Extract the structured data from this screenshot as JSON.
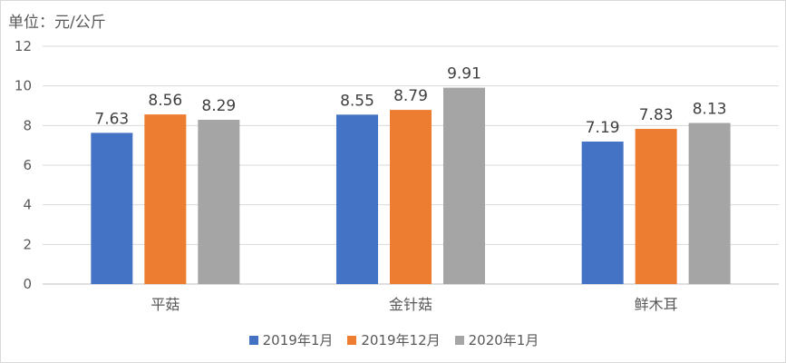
{
  "chart_data": {
    "type": "bar",
    "unit_label": "单位：元/公斤",
    "categories": [
      "平菇",
      "金针菇",
      "鲜木耳"
    ],
    "series": [
      {
        "name": "2019年1月",
        "color": "#4472c4",
        "values": [
          7.63,
          8.55,
          7.19
        ]
      },
      {
        "name": "2019年12月",
        "color": "#ed7d31",
        "values": [
          8.56,
          8.79,
          7.83
        ]
      },
      {
        "name": "2020年1月",
        "color": "#a5a5a5",
        "values": [
          8.29,
          9.91,
          8.13
        ]
      }
    ],
    "ylim": [
      0,
      12
    ],
    "yticks": [
      0,
      2,
      4,
      6,
      8,
      10,
      12
    ],
    "grid": true,
    "legend_position": "bottom"
  }
}
